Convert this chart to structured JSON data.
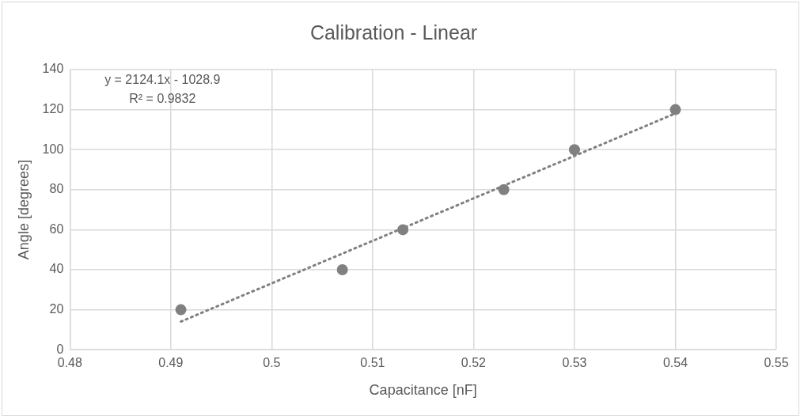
{
  "chart_data": {
    "type": "scatter",
    "title": "Calibration - Linear",
    "xlabel": "Capacitance [nF]",
    "ylabel": "Angle [degrees]",
    "xlim": [
      0.48,
      0.55
    ],
    "xticks": [
      0.48,
      0.49,
      0.5,
      0.51,
      0.52,
      0.53,
      0.54,
      0.55
    ],
    "ylim": [
      0,
      140
    ],
    "yticks": [
      0,
      20,
      40,
      60,
      80,
      100,
      120,
      140
    ],
    "grid": true,
    "series": [
      {
        "color": "#808080",
        "marker": "circle",
        "x": [
          0.491,
          0.507,
          0.513,
          0.523,
          0.53,
          0.54
        ],
        "values": [
          20,
          40,
          60,
          80,
          100,
          120
        ]
      },
      {
        "type": "line",
        "color": "#808080",
        "marker": "none",
        "line_style": "dotted",
        "x": [
          0.491,
          0.54
        ],
        "values": [
          14.1,
          118.1
        ]
      }
    ],
    "annotations": [
      "y = 2124.1x - 1028.9",
      "R² = 0.9832"
    ]
  }
}
